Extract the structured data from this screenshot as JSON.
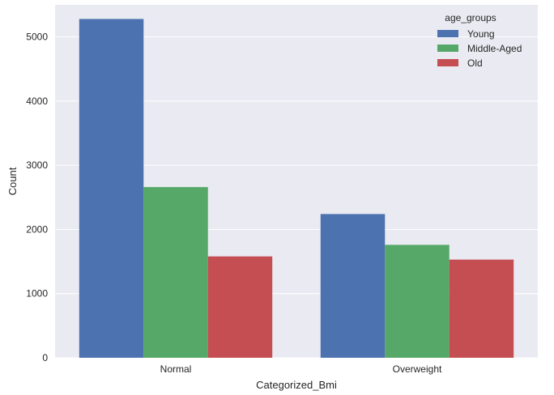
{
  "chart_data": {
    "type": "bar",
    "title": "",
    "xlabel": "Categorized_Bmi",
    "ylabel": "Count",
    "categories": [
      "Normal",
      "Overweight"
    ],
    "series": [
      {
        "name": "Young",
        "color": "#4c72b0",
        "values": [
          5280,
          2240
        ]
      },
      {
        "name": "Middle-Aged",
        "color": "#55a868",
        "values": [
          2660,
          1760
        ]
      },
      {
        "name": "Old",
        "color": "#c44e52",
        "values": [
          1580,
          1530
        ]
      }
    ],
    "ylim": [
      0,
      5500
    ],
    "yticks": [
      0,
      1000,
      2000,
      3000,
      4000,
      5000
    ],
    "grid": true,
    "legend": {
      "title": "age_groups",
      "placement": "top-right"
    }
  }
}
